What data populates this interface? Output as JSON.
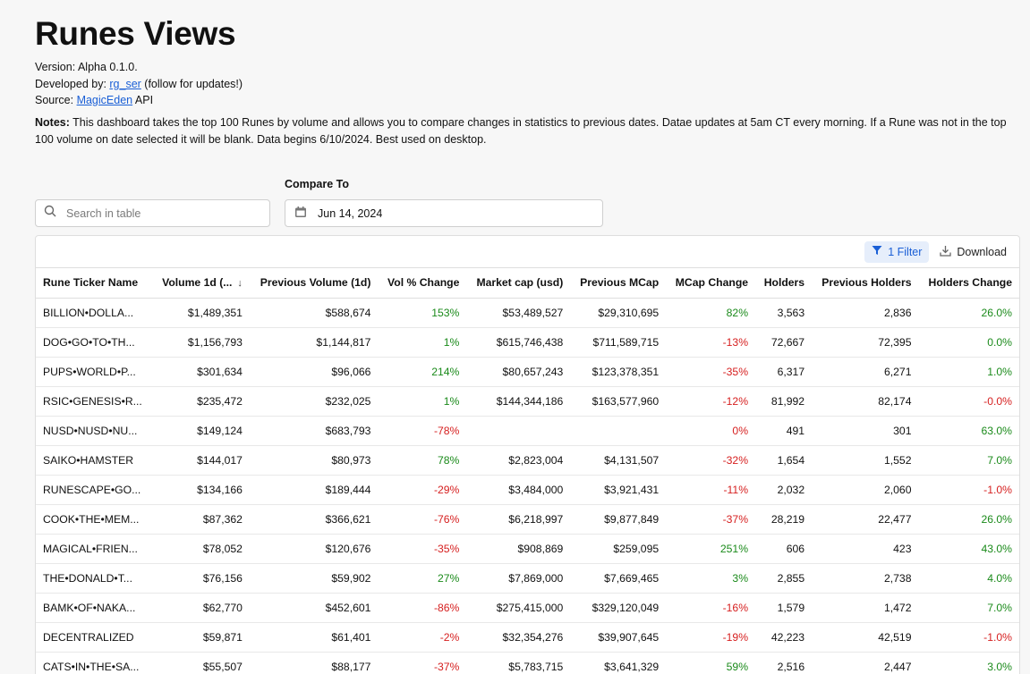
{
  "page": {
    "title": "Runes Views",
    "version": "Version: Alpha 0.1.0.",
    "developed_prefix": "Developed by: ",
    "developer_link": "rg_ser",
    "developed_suffix": " (follow for updates!)",
    "source_prefix": "Source: ",
    "source_link": "MagicEden",
    "source_suffix": " API",
    "notes_label": "Notes:",
    "notes_text": " This dashboard takes the top 100 Runes by volume and allows you to compare changes in statistics to previous dates. Datae updates at 5am CT every morning. If a Rune was not in the top 100 volume on date selected it will be blank. Data begins 6/10/2024. Best used on desktop."
  },
  "search": {
    "placeholder": "Search in table",
    "icon": "search-icon"
  },
  "compare": {
    "label": "Compare To",
    "value": "Jun 14, 2024",
    "icon": "calendar-icon"
  },
  "toolbar": {
    "filter_label": "1 Filter",
    "download_label": "Download"
  },
  "colors": {
    "positive": "#1a8a1a",
    "negative": "#d62020",
    "accent": "#1a5fd6"
  },
  "table": {
    "headers": [
      "Rune Ticker Name",
      "Volume 1d (...",
      "Previous Volume (1d)",
      "Vol % Change",
      "Market cap (usd)",
      "Previous MCap",
      "MCap Change",
      "Holders",
      "Previous Holders",
      "Holders Change"
    ],
    "rows": [
      [
        "BILLION•DOLLA...",
        "$1,489,351",
        "$588,674",
        "153%",
        "$53,489,527",
        "$29,310,695",
        "82%",
        "3,563",
        "2,836",
        "26.0%"
      ],
      [
        "DOG•GO•TO•TH...",
        "$1,156,793",
        "$1,144,817",
        "1%",
        "$615,746,438",
        "$711,589,715",
        "-13%",
        "72,667",
        "72,395",
        "0.0%"
      ],
      [
        "PUPS•WORLD•P...",
        "$301,634",
        "$96,066",
        "214%",
        "$80,657,243",
        "$123,378,351",
        "-35%",
        "6,317",
        "6,271",
        "1.0%"
      ],
      [
        "RSIC•GENESIS•R...",
        "$235,472",
        "$232,025",
        "1%",
        "$144,344,186",
        "$163,577,960",
        "-12%",
        "81,992",
        "82,174",
        "-0.0%"
      ],
      [
        "NUSD•NUSD•NU...",
        "$149,124",
        "$683,793",
        "-78%",
        "",
        "",
        "0%",
        "491",
        "301",
        "63.0%"
      ],
      [
        "SAIKO•HAMSTER",
        "$144,017",
        "$80,973",
        "78%",
        "$2,823,004",
        "$4,131,507",
        "-32%",
        "1,654",
        "1,552",
        "7.0%"
      ],
      [
        "RUNESCAPE•GO...",
        "$134,166",
        "$189,444",
        "-29%",
        "$3,484,000",
        "$3,921,431",
        "-11%",
        "2,032",
        "2,060",
        "-1.0%"
      ],
      [
        "COOK•THE•MEM...",
        "$87,362",
        "$366,621",
        "-76%",
        "$6,218,997",
        "$9,877,849",
        "-37%",
        "28,219",
        "22,477",
        "26.0%"
      ],
      [
        "MAGICAL•FRIEN...",
        "$78,052",
        "$120,676",
        "-35%",
        "$908,869",
        "$259,095",
        "251%",
        "606",
        "423",
        "43.0%"
      ],
      [
        "THE•DONALD•T...",
        "$76,156",
        "$59,902",
        "27%",
        "$7,869,000",
        "$7,669,465",
        "3%",
        "2,855",
        "2,738",
        "4.0%"
      ],
      [
        "BAMK•OF•NAKA...",
        "$62,770",
        "$452,601",
        "-86%",
        "$275,415,000",
        "$329,120,049",
        "-16%",
        "1,579",
        "1,472",
        "7.0%"
      ],
      [
        "DECENTRALIZED",
        "$59,871",
        "$61,401",
        "-2%",
        "$32,354,276",
        "$39,907,645",
        "-19%",
        "42,223",
        "42,519",
        "-1.0%"
      ],
      [
        "CATS•IN•THE•SA...",
        "$55,507",
        "$88,177",
        "-37%",
        "$5,783,715",
        "$3,641,329",
        "59%",
        "2,516",
        "2,447",
        "3.0%"
      ]
    ],
    "colored_columns": [
      3,
      6,
      9
    ],
    "negative_color_columns": [
      3,
      6
    ]
  }
}
